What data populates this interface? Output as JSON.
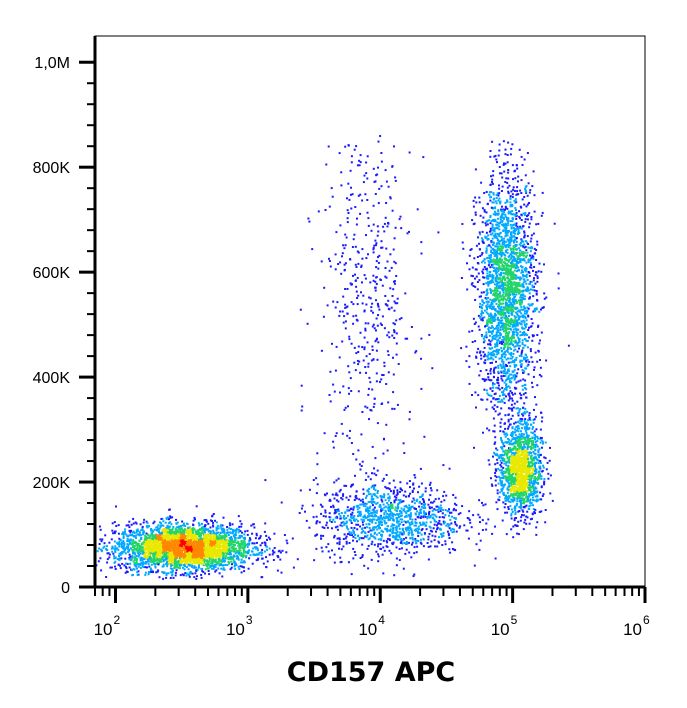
{
  "chart_data": {
    "type": "scatter",
    "title": "",
    "xlabel": "CD157 APC",
    "ylabel": "",
    "x_scale": "log",
    "xlim": [
      70,
      1000000
    ],
    "ylim": [
      0,
      1050000
    ],
    "grid": false,
    "x_ticks": [
      {
        "value": 100,
        "base": "10",
        "exp": "2"
      },
      {
        "value": 1000,
        "base": "10",
        "exp": "3"
      },
      {
        "value": 10000,
        "base": "10",
        "exp": "4"
      },
      {
        "value": 100000,
        "base": "10",
        "exp": "5"
      },
      {
        "value": 1000000,
        "base": "10",
        "exp": "6"
      }
    ],
    "y_ticks": [
      {
        "value": 0,
        "label": "0"
      },
      {
        "value": 200000,
        "label": "200K"
      },
      {
        "value": 400000,
        "label": "400K"
      },
      {
        "value": 600000,
        "label": "600K"
      },
      {
        "value": 800000,
        "label": "800K"
      },
      {
        "value": 1000000,
        "label": "1,0M"
      }
    ],
    "color_scale": [
      "#1a1aff",
      "#00a8ff",
      "#22d46a",
      "#e8e800",
      "#ff8800",
      "#ff0000"
    ],
    "populations": [
      {
        "x_center": 330,
        "y_center": 75000,
        "x_spread_log": 0.26,
        "y_spread": 22000,
        "count": 3200
      },
      {
        "x_center": 90000,
        "y_center": 560000,
        "x_spread_log": 0.11,
        "y_spread": 110000,
        "count": 2400
      },
      {
        "x_center": 115000,
        "y_center": 225000,
        "x_spread_log": 0.08,
        "y_spread": 45000,
        "count": 1400
      },
      {
        "x_center": 12000,
        "y_center": 130000,
        "x_spread_log": 0.28,
        "y_spread": 35000,
        "count": 1100
      },
      {
        "x_center": 8000,
        "y_center": 560000,
        "x_spread_log": 0.18,
        "y_spread": 190000,
        "count": 500
      }
    ]
  }
}
